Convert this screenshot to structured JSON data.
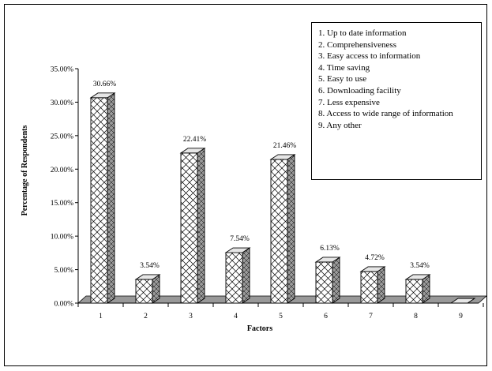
{
  "chart_data": {
    "type": "bar",
    "title": "",
    "xlabel": "Factors",
    "ylabel": "Percentage of Respondents",
    "categories": [
      "1",
      "2",
      "3",
      "4",
      "5",
      "6",
      "7",
      "8",
      "9"
    ],
    "values": [
      30.66,
      3.54,
      22.41,
      7.54,
      21.46,
      6.13,
      4.72,
      3.54,
      0
    ],
    "data_labels": [
      "30.66%",
      "3.54%",
      "22.41%",
      "7.54%",
      "21.46%",
      "6.13%",
      "4.72%",
      "3.54%",
      ""
    ],
    "y_ticks": [
      "0.00%",
      "5.00%",
      "10.00%",
      "15.00%",
      "20.00%",
      "25.00%",
      "30.00%",
      "35.00%"
    ],
    "ylim": [
      0,
      35
    ],
    "grid": false,
    "legend_position": "top-right",
    "legend": [
      "1. Up to date information",
      "2. Comprehensiveness",
      "3. Easy access to information",
      "4. Time saving",
      "5. Easy to use",
      "6. Downloading facility",
      "7. Less expensive",
      "8. Access to wide range of information",
      "9. Any other"
    ],
    "bar_pattern": "crosshatch-3d"
  }
}
